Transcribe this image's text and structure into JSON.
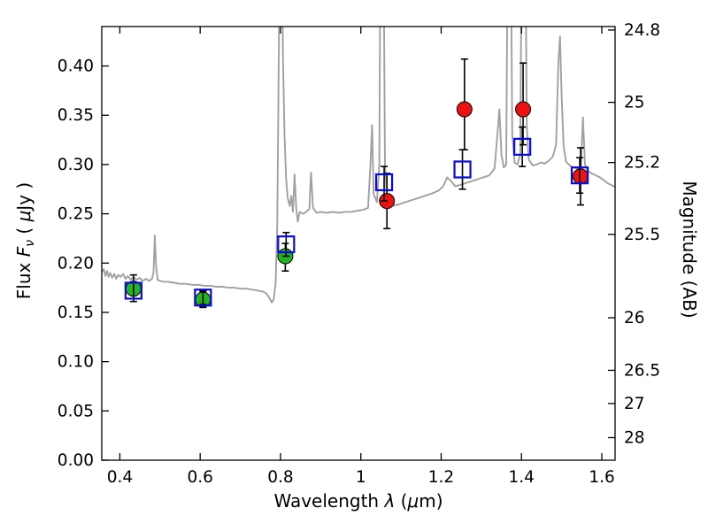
{
  "figure": {
    "background": "#ffffff"
  },
  "chart_data": {
    "type": "line",
    "title": "",
    "xlabel": "Wavelength λ (μm)",
    "ylabel": "Flux Fν ( μJy )",
    "ylabel_right": "Magnitude (AB)",
    "xlim": [
      0.355,
      1.633
    ],
    "ylim": [
      0.0,
      0.44
    ],
    "grid": false,
    "legend": false,
    "errorbar_color": "#000000",
    "axis_color": "#000000",
    "xlabel_parts": [
      {
        "t": "Wavelength  "
      },
      {
        "t": "λ",
        "i": true
      },
      {
        "t": " ("
      },
      {
        "t": "μ",
        "i": true
      },
      {
        "t": "m)"
      }
    ],
    "ylabel_left_parts": [
      {
        "t": "Flux  "
      },
      {
        "t": "F",
        "i": true
      },
      {
        "t": "ν",
        "i": true,
        "sub": true
      },
      {
        "t": "  ( "
      },
      {
        "t": "μ",
        "i": true
      },
      {
        "t": "Jy )"
      }
    ],
    "ylabel_right_parts": [
      {
        "t": "Magnitude (AB)"
      }
    ],
    "x_ticks": [
      {
        "value": 0.4,
        "label": "0.4"
      },
      {
        "value": 0.6,
        "label": "0.6"
      },
      {
        "value": 0.8,
        "label": "0.8"
      },
      {
        "value": 1.0,
        "label": "1"
      },
      {
        "value": 1.2,
        "label": "1.2"
      },
      {
        "value": 1.4,
        "label": "1.4"
      },
      {
        "value": 1.6,
        "label": "1.6"
      }
    ],
    "y_ticks_left": [
      {
        "value": 0.0,
        "label": "0.00"
      },
      {
        "value": 0.05,
        "label": "0.05"
      },
      {
        "value": 0.1,
        "label": "0.10"
      },
      {
        "value": 0.15,
        "label": "0.15"
      },
      {
        "value": 0.2,
        "label": "0.20"
      },
      {
        "value": 0.25,
        "label": "0.25"
      },
      {
        "value": 0.3,
        "label": "0.30"
      },
      {
        "value": 0.35,
        "label": "0.35"
      },
      {
        "value": 0.4,
        "label": "0.40"
      }
    ],
    "y_ticks_right": [
      {
        "flux": 0.4365,
        "label": "24.8"
      },
      {
        "flux": 0.3631,
        "label": "25"
      },
      {
        "flux": 0.302,
        "label": "25.2"
      },
      {
        "flux": 0.2291,
        "label": "25.5"
      },
      {
        "flux": 0.1445,
        "label": "26"
      },
      {
        "flux": 0.0912,
        "label": "26.5"
      },
      {
        "flux": 0.0575,
        "label": "27"
      },
      {
        "flux": 0.0229,
        "label": "28"
      }
    ],
    "spectrum": {
      "name": "model-spectrum",
      "color": "#a0a0a0",
      "linewidth": 1.9,
      "points": [
        [
          0.355,
          0.191
        ],
        [
          0.36,
          0.194
        ],
        [
          0.364,
          0.187
        ],
        [
          0.368,
          0.192
        ],
        [
          0.372,
          0.186
        ],
        [
          0.376,
          0.19
        ],
        [
          0.381,
          0.185
        ],
        [
          0.386,
          0.189
        ],
        [
          0.391,
          0.184
        ],
        [
          0.396,
          0.188
        ],
        [
          0.402,
          0.186
        ],
        [
          0.408,
          0.189
        ],
        [
          0.414,
          0.184
        ],
        [
          0.42,
          0.187
        ],
        [
          0.427,
          0.183
        ],
        [
          0.434,
          0.186
        ],
        [
          0.441,
          0.183
        ],
        [
          0.449,
          0.185
        ],
        [
          0.457,
          0.182
        ],
        [
          0.465,
          0.184
        ],
        [
          0.473,
          0.182
        ],
        [
          0.48,
          0.184
        ],
        [
          0.484,
          0.19
        ],
        [
          0.487,
          0.228
        ],
        [
          0.49,
          0.198
        ],
        [
          0.494,
          0.183
        ],
        [
          0.5,
          0.182
        ],
        [
          0.51,
          0.181
        ],
        [
          0.52,
          0.181
        ],
        [
          0.535,
          0.18
        ],
        [
          0.55,
          0.179
        ],
        [
          0.565,
          0.179
        ],
        [
          0.58,
          0.178
        ],
        [
          0.595,
          0.178
        ],
        [
          0.61,
          0.177
        ],
        [
          0.625,
          0.177
        ],
        [
          0.64,
          0.176
        ],
        [
          0.655,
          0.176
        ],
        [
          0.67,
          0.175
        ],
        [
          0.685,
          0.175
        ],
        [
          0.7,
          0.174
        ],
        [
          0.715,
          0.174
        ],
        [
          0.73,
          0.173
        ],
        [
          0.745,
          0.172
        ],
        [
          0.757,
          0.171
        ],
        [
          0.765,
          0.169
        ],
        [
          0.772,
          0.165
        ],
        [
          0.778,
          0.16
        ],
        [
          0.783,
          0.163
        ],
        [
          0.788,
          0.18
        ],
        [
          0.792,
          0.24
        ],
        [
          0.796,
          0.42
        ],
        [
          0.799,
          0.62
        ],
        [
          0.803,
          0.62
        ],
        [
          0.806,
          0.41
        ],
        [
          0.81,
          0.33
        ],
        [
          0.814,
          0.285
        ],
        [
          0.818,
          0.266
        ],
        [
          0.823,
          0.258
        ],
        [
          0.827,
          0.268
        ],
        [
          0.831,
          0.252
        ],
        [
          0.835,
          0.29
        ],
        [
          0.839,
          0.256
        ],
        [
          0.843,
          0.242
        ],
        [
          0.848,
          0.252
        ],
        [
          0.856,
          0.25
        ],
        [
          0.864,
          0.252
        ],
        [
          0.872,
          0.255
        ],
        [
          0.876,
          0.292
        ],
        [
          0.881,
          0.256
        ],
        [
          0.89,
          0.251
        ],
        [
          0.9,
          0.252
        ],
        [
          0.915,
          0.251
        ],
        [
          0.93,
          0.252
        ],
        [
          0.945,
          0.251
        ],
        [
          0.96,
          0.252
        ],
        [
          0.975,
          0.252
        ],
        [
          0.99,
          0.253
        ],
        [
          1.005,
          0.254
        ],
        [
          1.018,
          0.256
        ],
        [
          1.024,
          0.3
        ],
        [
          1.028,
          0.34
        ],
        [
          1.032,
          0.27
        ],
        [
          1.04,
          0.262
        ],
        [
          1.046,
          0.3
        ],
        [
          1.05,
          0.62
        ],
        [
          1.055,
          0.62
        ],
        [
          1.06,
          0.3
        ],
        [
          1.066,
          0.262
        ],
        [
          1.075,
          0.258
        ],
        [
          1.09,
          0.259
        ],
        [
          1.105,
          0.261
        ],
        [
          1.12,
          0.263
        ],
        [
          1.135,
          0.265
        ],
        [
          1.15,
          0.267
        ],
        [
          1.165,
          0.269
        ],
        [
          1.18,
          0.271
        ],
        [
          1.195,
          0.274
        ],
        [
          1.205,
          0.278
        ],
        [
          1.215,
          0.287
        ],
        [
          1.225,
          0.283
        ],
        [
          1.235,
          0.278
        ],
        [
          1.245,
          0.279
        ],
        [
          1.26,
          0.281
        ],
        [
          1.275,
          0.283
        ],
        [
          1.29,
          0.285
        ],
        [
          1.305,
          0.287
        ],
        [
          1.32,
          0.289
        ],
        [
          1.333,
          0.296
        ],
        [
          1.34,
          0.33
        ],
        [
          1.345,
          0.356
        ],
        [
          1.35,
          0.31
        ],
        [
          1.356,
          0.297
        ],
        [
          1.362,
          0.3
        ],
        [
          1.367,
          0.62
        ],
        [
          1.372,
          0.62
        ],
        [
          1.377,
          0.33
        ],
        [
          1.383,
          0.302
        ],
        [
          1.39,
          0.3
        ],
        [
          1.397,
          0.31
        ],
        [
          1.402,
          0.62
        ],
        [
          1.408,
          0.62
        ],
        [
          1.413,
          0.34
        ],
        [
          1.418,
          0.305
        ],
        [
          1.428,
          0.299
        ],
        [
          1.438,
          0.3
        ],
        [
          1.448,
          0.302
        ],
        [
          1.458,
          0.301
        ],
        [
          1.468,
          0.304
        ],
        [
          1.478,
          0.308
        ],
        [
          1.486,
          0.32
        ],
        [
          1.492,
          0.405
        ],
        [
          1.496,
          0.43
        ],
        [
          1.5,
          0.37
        ],
        [
          1.505,
          0.318
        ],
        [
          1.511,
          0.303
        ],
        [
          1.52,
          0.299
        ],
        [
          1.53,
          0.297
        ],
        [
          1.54,
          0.296
        ],
        [
          1.548,
          0.298
        ],
        [
          1.553,
          0.348
        ],
        [
          1.558,
          0.3
        ],
        [
          1.566,
          0.293
        ],
        [
          1.575,
          0.291
        ],
        [
          1.585,
          0.289
        ],
        [
          1.595,
          0.287
        ],
        [
          1.605,
          0.284
        ],
        [
          1.615,
          0.281
        ],
        [
          1.625,
          0.279
        ],
        [
          1.633,
          0.277
        ]
      ]
    },
    "series": [
      {
        "name": "green-photometry",
        "marker": "circle",
        "fill": "#22b522",
        "edge": "#000000",
        "points": [
          {
            "x": 0.434,
            "y": 0.174,
            "err_lo": 0.013,
            "err_hi": 0.014
          },
          {
            "x": 0.607,
            "y": 0.163,
            "err_lo": 0.008,
            "err_hi": 0.008
          },
          {
            "x": 0.812,
            "y": 0.207,
            "err_lo": 0.015,
            "err_hi": 0.013
          }
        ]
      },
      {
        "name": "red-photometry",
        "marker": "circle",
        "fill": "#ee1111",
        "edge": "#000000",
        "points": [
          {
            "x": 1.065,
            "y": 0.263,
            "err_lo": 0.028,
            "err_hi": 0.028
          },
          {
            "x": 1.258,
            "y": 0.356,
            "err_lo": 0.041,
            "err_hi": 0.051
          },
          {
            "x": 1.404,
            "y": 0.356,
            "err_lo": 0.036,
            "err_hi": 0.047
          },
          {
            "x": 1.547,
            "y": 0.288,
            "err_lo": 0.029,
            "err_hi": 0.029
          }
        ]
      },
      {
        "name": "blue-photometry",
        "marker": "square-open",
        "fill": "none",
        "edge": "#0a0adf",
        "points": [
          {
            "x": 0.434,
            "y": 0.172,
            "err_lo": 0.008,
            "err_hi": 0.008
          },
          {
            "x": 0.607,
            "y": 0.165,
            "err_lo": 0.007,
            "err_hi": 0.007
          },
          {
            "x": 0.814,
            "y": 0.219,
            "err_lo": 0.012,
            "err_hi": 0.012
          },
          {
            "x": 1.058,
            "y": 0.282,
            "err_lo": 0.019,
            "err_hi": 0.016
          },
          {
            "x": 1.253,
            "y": 0.295,
            "err_lo": 0.02,
            "err_hi": 0.02
          },
          {
            "x": 1.402,
            "y": 0.318,
            "err_lo": 0.02,
            "err_hi": 0.02
          },
          {
            "x": 1.545,
            "y": 0.289,
            "err_lo": 0.018,
            "err_hi": 0.018
          }
        ]
      }
    ]
  }
}
